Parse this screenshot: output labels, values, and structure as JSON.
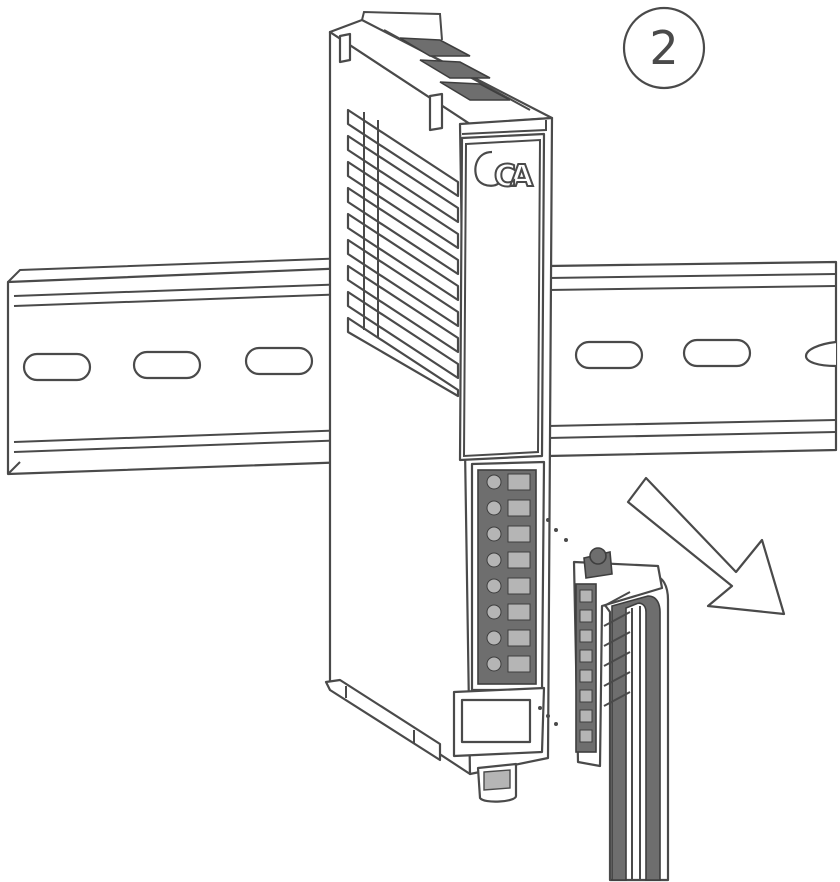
{
  "figure": {
    "step_number": "2",
    "module_logo": "CA",
    "colors": {
      "line": "#4a4a4a",
      "fill": "#ffffff",
      "connector_dark": "#6e6e6e",
      "highlight": "#b5b5b5"
    },
    "icons": [
      "din-rail",
      "io-module",
      "terminal-connector",
      "remove-direction-arrow",
      "step-badge"
    ]
  }
}
